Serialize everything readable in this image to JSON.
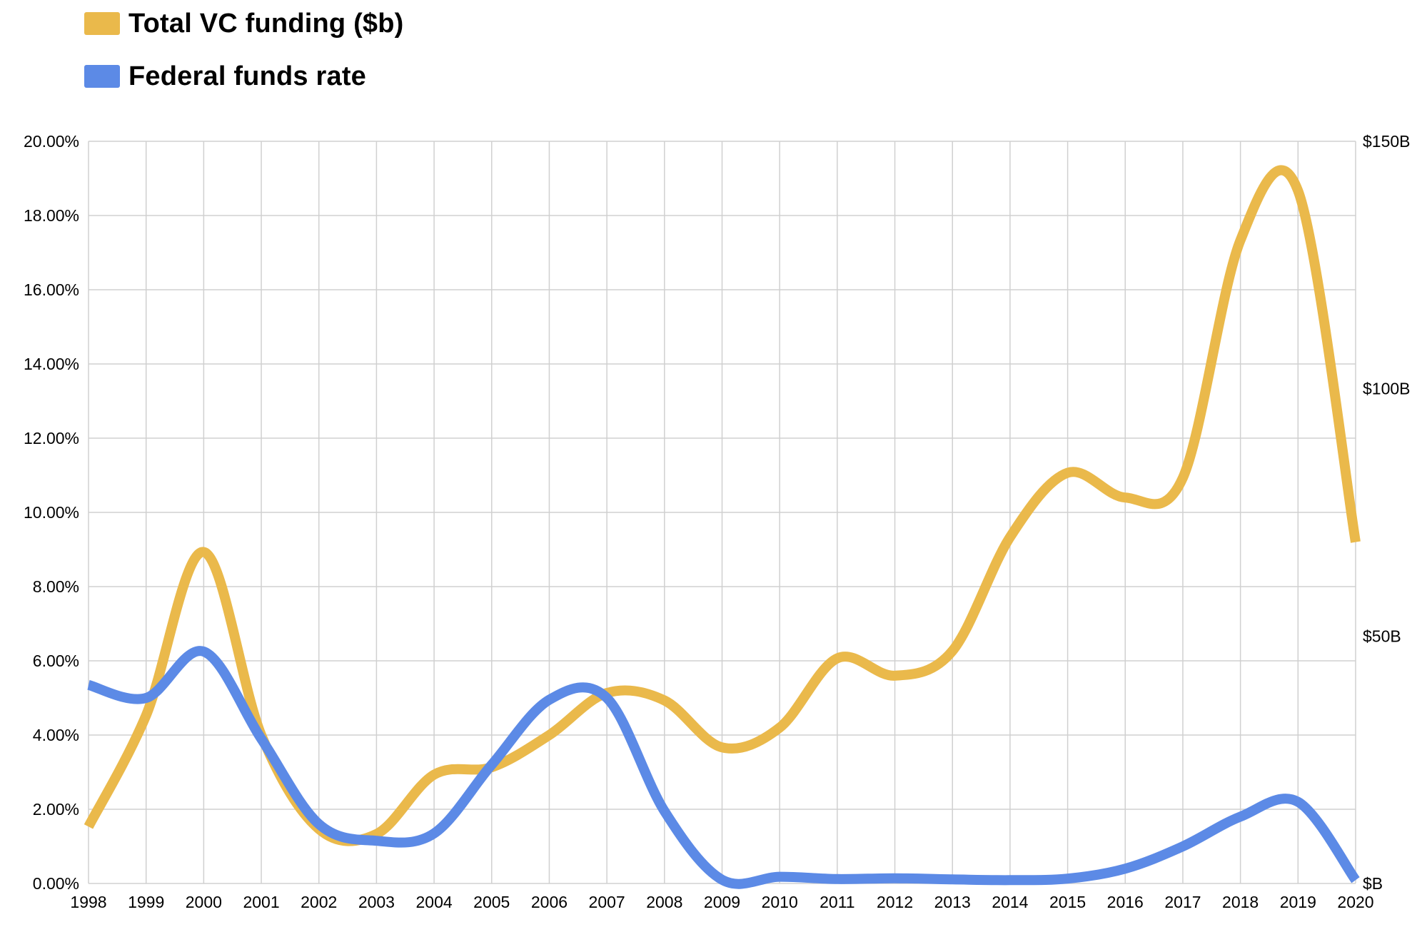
{
  "colors": {
    "vc": "#eab94b",
    "fed": "#5c8ae6",
    "grid": "#d0d0d0"
  },
  "chart_data": {
    "type": "line",
    "x": [
      1998,
      1999,
      2000,
      2001,
      2002,
      2003,
      2004,
      2005,
      2006,
      2007,
      2008,
      2009,
      2010,
      2011,
      2012,
      2013,
      2014,
      2015,
      2016,
      2017,
      2018,
      2019,
      2020
    ],
    "xtick_labels": [
      "1998",
      "1999",
      "2000",
      "2001",
      "2002",
      "2003",
      "2004",
      "2005",
      "2006",
      "2007",
      "2008",
      "2009",
      "2010",
      "2011",
      "2012",
      "2013",
      "2014",
      "2015",
      "2016",
      "2017",
      "2018",
      "2019",
      "2020"
    ],
    "series": [
      {
        "name": "Total VC funding ($b)",
        "axis": "right",
        "values": [
          11.5,
          34,
          67,
          30,
          11,
          10,
          22,
          23.5,
          30,
          38.5,
          37,
          27.5,
          31.5,
          45.5,
          42,
          47,
          70,
          83,
          78,
          82,
          130,
          140,
          69
        ]
      },
      {
        "name": "Federal funds rate",
        "axis": "left",
        "values": [
          5.35,
          5.0,
          6.25,
          3.9,
          1.6,
          1.15,
          1.35,
          3.2,
          4.95,
          5.0,
          1.95,
          0.1,
          0.18,
          0.12,
          0.14,
          0.11,
          0.09,
          0.13,
          0.4,
          1.0,
          1.8,
          2.2,
          0.09
        ]
      }
    ],
    "y_left": {
      "lim": [
        0,
        20
      ],
      "ticks": [
        "0.00%",
        "2.00%",
        "4.00%",
        "6.00%",
        "8.00%",
        "10.00%",
        "12.00%",
        "14.00%",
        "16.00%",
        "18.00%",
        "20.00%"
      ]
    },
    "y_right": {
      "lim": [
        0,
        150
      ],
      "ticks": [
        "$B",
        "$50B",
        "$100B",
        "$150B"
      ]
    },
    "grid": true,
    "legend_position": "top-left"
  }
}
